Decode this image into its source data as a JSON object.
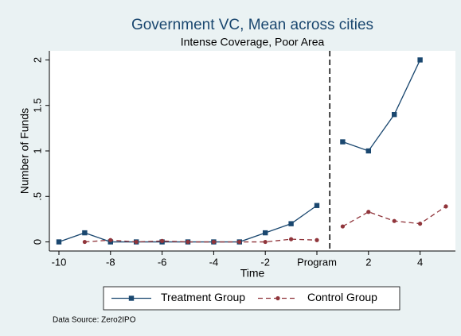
{
  "chart_data": {
    "type": "line",
    "title": "Government VC, Mean across cities",
    "subtitle": "Intense Coverage, Poor Area",
    "xlabel": "Time",
    "ylabel": "Number of Funds",
    "note": "Data Source: Zero2IPO",
    "x": [
      -10,
      -9,
      -8,
      -7,
      -6,
      -5,
      -4,
      -3,
      -2,
      -1,
      0,
      1,
      2,
      3,
      4,
      5
    ],
    "series": [
      {
        "name": "Treatment Group",
        "color": "#1a476f",
        "marker": "square",
        "dash": false,
        "values": [
          0,
          0.1,
          0,
          0,
          0,
          0,
          0,
          0,
          0.1,
          0.2,
          0.4,
          1.1,
          1.0,
          1.4,
          2.0,
          null
        ]
      },
      {
        "name": "Control Group",
        "color": "#90353b",
        "marker": "circle",
        "dash": true,
        "values": [
          null,
          0,
          0.02,
          0,
          0.01,
          0,
          0,
          0,
          0,
          0.03,
          0.02,
          0.17,
          0.33,
          0.23,
          0.2,
          0.39
        ]
      }
    ],
    "xlim": [
      -10.37,
      5.37
    ],
    "ylim": [
      -0.1,
      2.1
    ],
    "xticks": [
      -10,
      -8,
      -6,
      -4,
      -2,
      {
        "value": 0,
        "label": "Program"
      },
      2,
      4
    ],
    "yticks": [
      0,
      {
        "value": 0.5,
        "label": ".5"
      },
      1,
      1.5,
      2
    ],
    "vline": 0.5,
    "grid": false,
    "legend": "bottom"
  }
}
